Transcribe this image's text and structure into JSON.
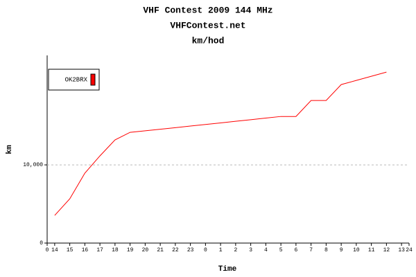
{
  "chart_data": {
    "type": "line",
    "title": "VHF Contest 2009 144 MHz",
    "subtitle": "VHFContest.net",
    "annotation": "km/hod",
    "xlabel": "Time",
    "ylabel": "km",
    "x": [
      0.5,
      1.5,
      2.5,
      3.5,
      4.5,
      5.5,
      6.5,
      7.5,
      8.5,
      9.5,
      10.5,
      11.5,
      12.5,
      13.5,
      14.5,
      15.5,
      16.5,
      17.5,
      18.5,
      19.5,
      20.5,
      21.5,
      22.5
    ],
    "series": [
      {
        "name": "OK2BRX",
        "color": "#ff0000",
        "values": [
          3540,
          5660,
          8940,
          11150,
          13190,
          14160,
          14360,
          14560,
          14760,
          14970,
          15170,
          15370,
          15580,
          15780,
          15990,
          16190,
          16190,
          18230,
          18230,
          20270,
          20800,
          21330,
          21860
        ]
      }
    ],
    "xlim": [
      0,
      24
    ],
    "xticks": [
      0,
      {
        "value": 0.5,
        "label": "14"
      },
      {
        "value": 1.5,
        "label": "15"
      },
      {
        "value": 2.5,
        "label": "16"
      },
      {
        "value": 3.5,
        "label": "17"
      },
      {
        "value": 4.5,
        "label": "18"
      },
      {
        "value": 5.5,
        "label": "19"
      },
      {
        "value": 6.5,
        "label": "20"
      },
      {
        "value": 7.5,
        "label": "21"
      },
      {
        "value": 8.5,
        "label": "22"
      },
      {
        "value": 9.5,
        "label": "23"
      },
      {
        "value": 10.5,
        "label": "0"
      },
      {
        "value": 11.5,
        "label": "1"
      },
      {
        "value": 12.5,
        "label": "2"
      },
      {
        "value": 13.5,
        "label": "3"
      },
      {
        "value": 14.5,
        "label": "4"
      },
      {
        "value": 15.5,
        "label": "5"
      },
      {
        "value": 16.5,
        "label": "6"
      },
      {
        "value": 17.5,
        "label": "7"
      },
      {
        "value": 18.5,
        "label": "8"
      },
      {
        "value": 19.5,
        "label": "9"
      },
      {
        "value": 20.5,
        "label": "10"
      },
      {
        "value": 21.5,
        "label": "11"
      },
      {
        "value": 22.5,
        "label": "12"
      },
      {
        "value": 23.5,
        "label": "13"
      },
      24
    ],
    "ylim": [
      0,
      24000
    ],
    "yticks": [
      0,
      {
        "value": 10000,
        "label": "10,000"
      }
    ],
    "grid": true,
    "legend": "upper left"
  }
}
